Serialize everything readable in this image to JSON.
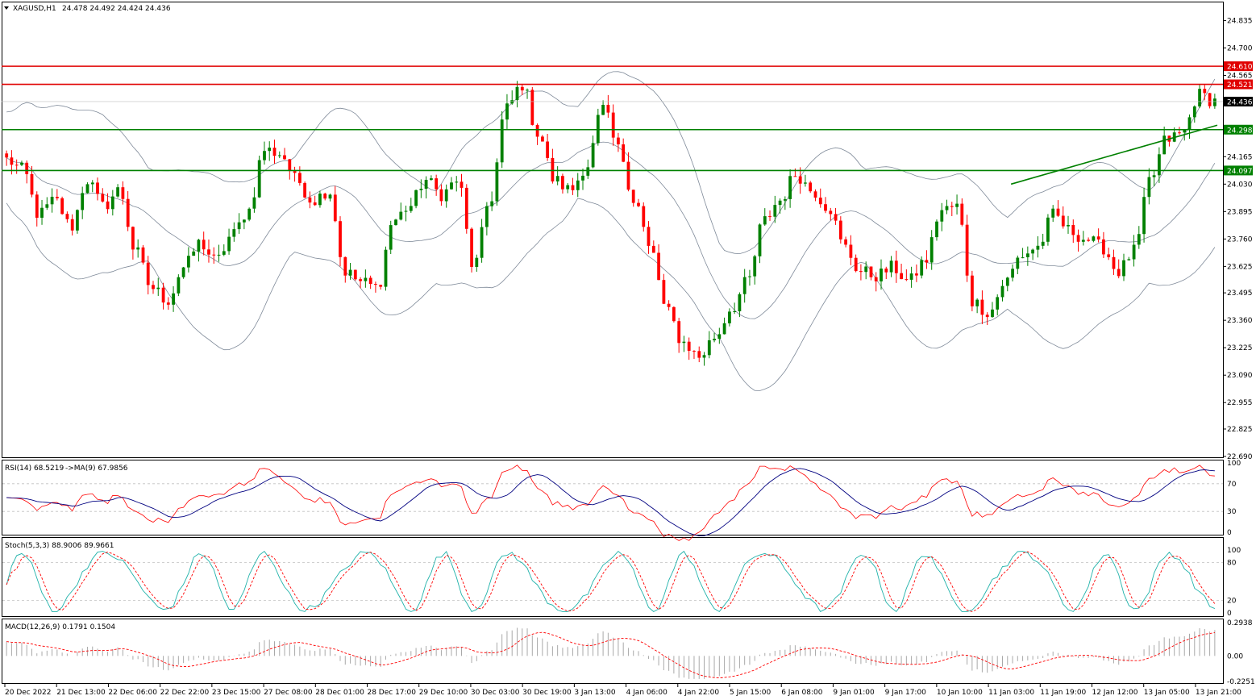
{
  "header": {
    "symbol_label": "XAGUSD,H1",
    "ohlc": "24.478 24.492 24.424 24.436",
    "menu_icon": "triangle-down-icon"
  },
  "panels": {
    "rsi_label": "RSI(14) 68.5219",
    "rsi_ma_label": "->MA(9) 67.9856",
    "stoch_label": "Stoch(5,3,3) 88.9006 89.9661",
    "macd_label": "MACD(12,26,9) 0.1791 0.1504"
  },
  "colors": {
    "bull": "#008000",
    "bear": "#ff0000",
    "band": "#7f8a99",
    "resistance": "#e00000",
    "support": "#008000",
    "current_price_tag": "#000000",
    "rsi_line": "#ff0000",
    "rsi_ma_line": "#000080",
    "stoch_main": "#20b2aa",
    "stoch_signal": "#ff0000",
    "macd_hist": "#a9a9a9",
    "macd_signal": "#ff0000"
  },
  "chart_data": {
    "type": "candlestick",
    "symbol": "XAGUSD",
    "timeframe": "H1",
    "price_axis_ticks": [
      "24.835",
      "24.700",
      "24.565",
      "24.165",
      "24.030",
      "23.895",
      "23.760",
      "23.625",
      "23.495",
      "23.360",
      "23.225",
      "23.090",
      "22.955",
      "22.825",
      "22.690"
    ],
    "ylim": [
      22.69,
      24.92
    ],
    "current_price": "24.436",
    "horizontal_levels": [
      {
        "price": 24.61,
        "label": "24.610",
        "kind": "resistance"
      },
      {
        "price": 24.521,
        "label": "24.521",
        "kind": "resistance"
      },
      {
        "price": 24.298,
        "label": "24.298",
        "kind": "support"
      },
      {
        "price": 24.097,
        "label": "24.097",
        "kind": "support"
      }
    ],
    "trendline": {
      "from": {
        "bar_fraction": 0.83,
        "price": 24.03
      },
      "to": {
        "bar_fraction": 1.0,
        "price": 24.32
      }
    },
    "x_tick_labels": [
      "20 Dec 2022",
      "21 Dec 13:00",
      "22 Dec 06:00",
      "22 Dec 22:00",
      "23 Dec 15:00",
      "27 Dec 08:00",
      "28 Dec 01:00",
      "28 Dec 17:00",
      "29 Dec 10:00",
      "30 Dec 03:00",
      "30 Dec 19:00",
      "3 Jan 13:00",
      "4 Jan 06:00",
      "4 Jan 22:00",
      "5 Jan 15:00",
      "6 Jan 08:00",
      "9 Jan 01:00",
      "9 Jan 17:00",
      "10 Jan 10:00",
      "11 Jan 03:00",
      "11 Jan 19:00",
      "12 Jan 12:00",
      "13 Jan 05:00",
      "13 Jan 21:00"
    ],
    "close_anchors": [
      24.15,
      24.1,
      23.88,
      23.95,
      23.82,
      24.05,
      23.92,
      24.0,
      23.7,
      23.52,
      23.46,
      23.62,
      23.74,
      23.65,
      23.78,
      23.9,
      24.2,
      24.18,
      24.05,
      23.95,
      24.0,
      23.6,
      23.55,
      23.52,
      23.85,
      23.92,
      24.05,
      23.98,
      24.05,
      23.62,
      23.95,
      24.4,
      24.52,
      24.28,
      24.05,
      24.0,
      24.12,
      24.4,
      24.2,
      23.95,
      23.7,
      23.4,
      23.25,
      23.18,
      23.28,
      23.42,
      23.55,
      23.85,
      23.95,
      24.08,
      24.0,
      23.92,
      23.72,
      23.6,
      23.58,
      23.62,
      23.55,
      23.65,
      23.9,
      23.92,
      23.45,
      23.4,
      23.55,
      23.68,
      23.72,
      23.88,
      23.8,
      23.76,
      23.72,
      23.6,
      23.7,
      24.05,
      24.25,
      24.28,
      24.47,
      24.44
    ],
    "bars_count": 240,
    "bollinger_band_half_width_price": 0.32,
    "rsi": {
      "levels": [
        70,
        30
      ],
      "axis_labels": [
        "100",
        "70",
        "30",
        "0"
      ],
      "range": [
        0,
        100
      ]
    },
    "stochastic": {
      "levels": [
        80,
        20
      ],
      "axis_labels": [
        "100",
        "80",
        "20",
        "0"
      ],
      "range": [
        0,
        100
      ]
    },
    "macd": {
      "axis_labels": [
        "0.2938",
        "0.00",
        "-0.2251"
      ],
      "range": [
        -0.2251,
        0.2938
      ]
    }
  }
}
